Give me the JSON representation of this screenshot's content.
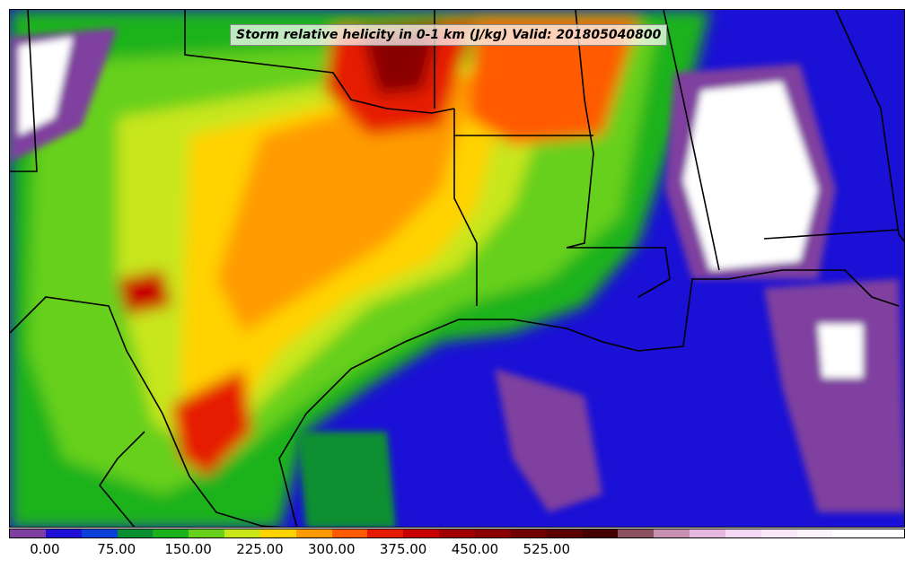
{
  "title": "Storm relative helicity in 0-1 km (J/kg) Valid: 201805040800",
  "colorbar": {
    "colors": [
      "#7f3f9f",
      "#1f10d8",
      "#0a3fd8",
      "#0a8f30",
      "#1ab21a",
      "#66d01a",
      "#c8e61a",
      "#ffd200",
      "#ff9b00",
      "#ff5a00",
      "#e61a00",
      "#c80000",
      "#a00000",
      "#8a0000",
      "#700000",
      "#5a0000",
      "#440000",
      "#8a5060",
      "#c890b0",
      "#e6b8e0",
      "#f4d8f4",
      "#f8e8f8",
      "#fbf4fb",
      "#ffffff",
      "#ffffff"
    ],
    "tick_labels": [
      "0.00",
      "75.00",
      "150.00",
      "225.00",
      "300.00",
      "375.00",
      "450.00",
      "525.00"
    ],
    "tick_values": [
      0,
      75,
      150,
      225,
      300,
      375,
      450,
      525
    ],
    "min": -37.5,
    "step": 37.5
  }
}
